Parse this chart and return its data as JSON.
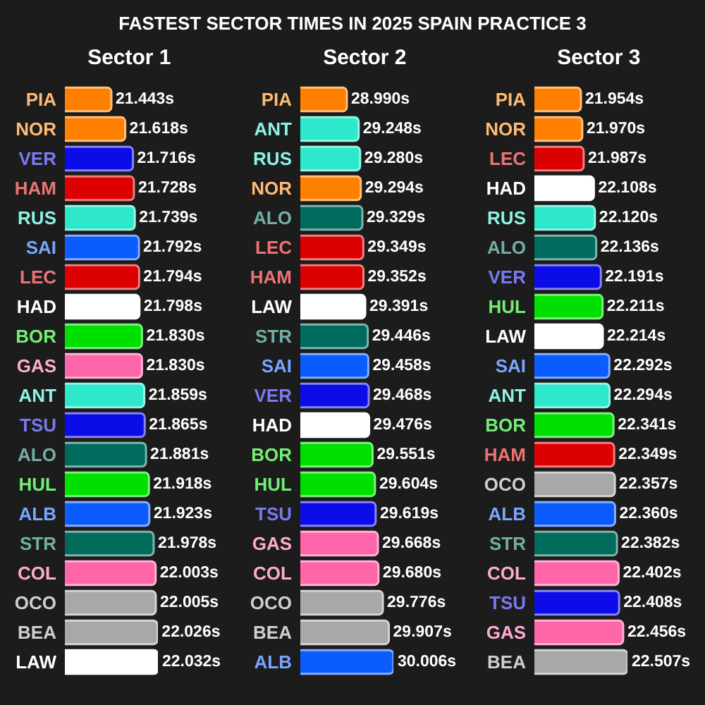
{
  "chart_data": [
    {
      "type": "other",
      "title": "FASTEST SECTOR TIMES IN 2025 SPAIN PRACTICE 3"
    },
    {
      "type": "bar",
      "orientation": "horizontal",
      "title": "Sector 1",
      "tick_labels": "y",
      "categories": [
        "PIA",
        "NOR",
        "VER",
        "HAM",
        "RUS",
        "SAI",
        "LEC",
        "HAD",
        "BOR",
        "GAS",
        "ANT",
        "TSU",
        "ALO",
        "HUL",
        "ALB",
        "STR",
        "COL",
        "OCO",
        "BEA",
        "LAW"
      ],
      "values": [
        21.443,
        21.618,
        21.716,
        21.728,
        21.739,
        21.792,
        21.794,
        21.798,
        21.83,
        21.83,
        21.859,
        21.865,
        21.881,
        21.918,
        21.923,
        21.978,
        22.003,
        22.005,
        22.026,
        22.032
      ],
      "value_labels": [
        "21.443s",
        "21.618s",
        "21.716s",
        "21.728s",
        "21.739s",
        "21.792s",
        "21.794s",
        "21.798s",
        "21.830s",
        "21.830s",
        "21.859s",
        "21.865s",
        "21.881s",
        "21.918s",
        "21.923s",
        "21.978s",
        "22.003s",
        "22.005s",
        "22.026s",
        "22.032s"
      ],
      "colors": [
        "#ff8000",
        "#ff8000",
        "#0c0ce8",
        "#dc0000",
        "#2ee8cc",
        "#0a5cff",
        "#dc0000",
        "#ffffff",
        "#00e000",
        "#ff66aa",
        "#2ee8cc",
        "#0c0ce8",
        "#006b5c",
        "#00e000",
        "#0a5cff",
        "#006b5c",
        "#ff66aa",
        "#a8a8a8",
        "#a8a8a8",
        "#ffffff"
      ]
    },
    {
      "type": "bar",
      "orientation": "horizontal",
      "title": "Sector 2",
      "tick_labels": "y",
      "categories": [
        "PIA",
        "ANT",
        "RUS",
        "NOR",
        "ALO",
        "LEC",
        "HAM",
        "LAW",
        "STR",
        "SAI",
        "VER",
        "HAD",
        "BOR",
        "HUL",
        "TSU",
        "GAS",
        "COL",
        "OCO",
        "BEA",
        "ALB"
      ],
      "values": [
        28.99,
        29.248,
        29.28,
        29.294,
        29.329,
        29.349,
        29.352,
        29.391,
        29.446,
        29.458,
        29.468,
        29.476,
        29.551,
        29.604,
        29.619,
        29.668,
        29.68,
        29.776,
        29.907,
        30.006
      ],
      "value_labels": [
        "28.990s",
        "29.248s",
        "29.280s",
        "29.294s",
        "29.329s",
        "29.349s",
        "29.352s",
        "29.391s",
        "29.446s",
        "29.458s",
        "29.468s",
        "29.476s",
        "29.551s",
        "29.604s",
        "29.619s",
        "29.668s",
        "29.680s",
        "29.776s",
        "29.907s",
        "30.006s"
      ],
      "colors": [
        "#ff8000",
        "#2ee8cc",
        "#2ee8cc",
        "#ff8000",
        "#006b5c",
        "#dc0000",
        "#dc0000",
        "#ffffff",
        "#006b5c",
        "#0a5cff",
        "#0c0ce8",
        "#ffffff",
        "#00e000",
        "#00e000",
        "#0c0ce8",
        "#ff66aa",
        "#ff66aa",
        "#a8a8a8",
        "#a8a8a8",
        "#0a5cff"
      ]
    },
    {
      "type": "bar",
      "orientation": "horizontal",
      "title": "Sector 3",
      "tick_labels": "y",
      "categories": [
        "PIA",
        "NOR",
        "LEC",
        "HAD",
        "RUS",
        "ALO",
        "VER",
        "HUL",
        "LAW",
        "SAI",
        "ANT",
        "BOR",
        "HAM",
        "OCO",
        "ALB",
        "STR",
        "COL",
        "TSU",
        "GAS",
        "BEA"
      ],
      "values": [
        21.954,
        21.97,
        21.987,
        22.108,
        22.12,
        22.136,
        22.191,
        22.211,
        22.214,
        22.292,
        22.294,
        22.341,
        22.349,
        22.357,
        22.36,
        22.382,
        22.402,
        22.408,
        22.456,
        22.507
      ],
      "value_labels": [
        "21.954s",
        "21.970s",
        "21.987s",
        "22.108s",
        "22.120s",
        "22.136s",
        "22.191s",
        "22.211s",
        "22.214s",
        "22.292s",
        "22.294s",
        "22.341s",
        "22.349s",
        "22.357s",
        "22.360s",
        "22.382s",
        "22.402s",
        "22.408s",
        "22.456s",
        "22.507s"
      ],
      "colors": [
        "#ff8000",
        "#ff8000",
        "#dc0000",
        "#ffffff",
        "#2ee8cc",
        "#006b5c",
        "#0c0ce8",
        "#00e000",
        "#ffffff",
        "#0a5cff",
        "#2ee8cc",
        "#00e000",
        "#dc0000",
        "#a8a8a8",
        "#0a5cff",
        "#006b5c",
        "#ff66aa",
        "#0c0ce8",
        "#ff66aa",
        "#a8a8a8"
      ]
    }
  ]
}
